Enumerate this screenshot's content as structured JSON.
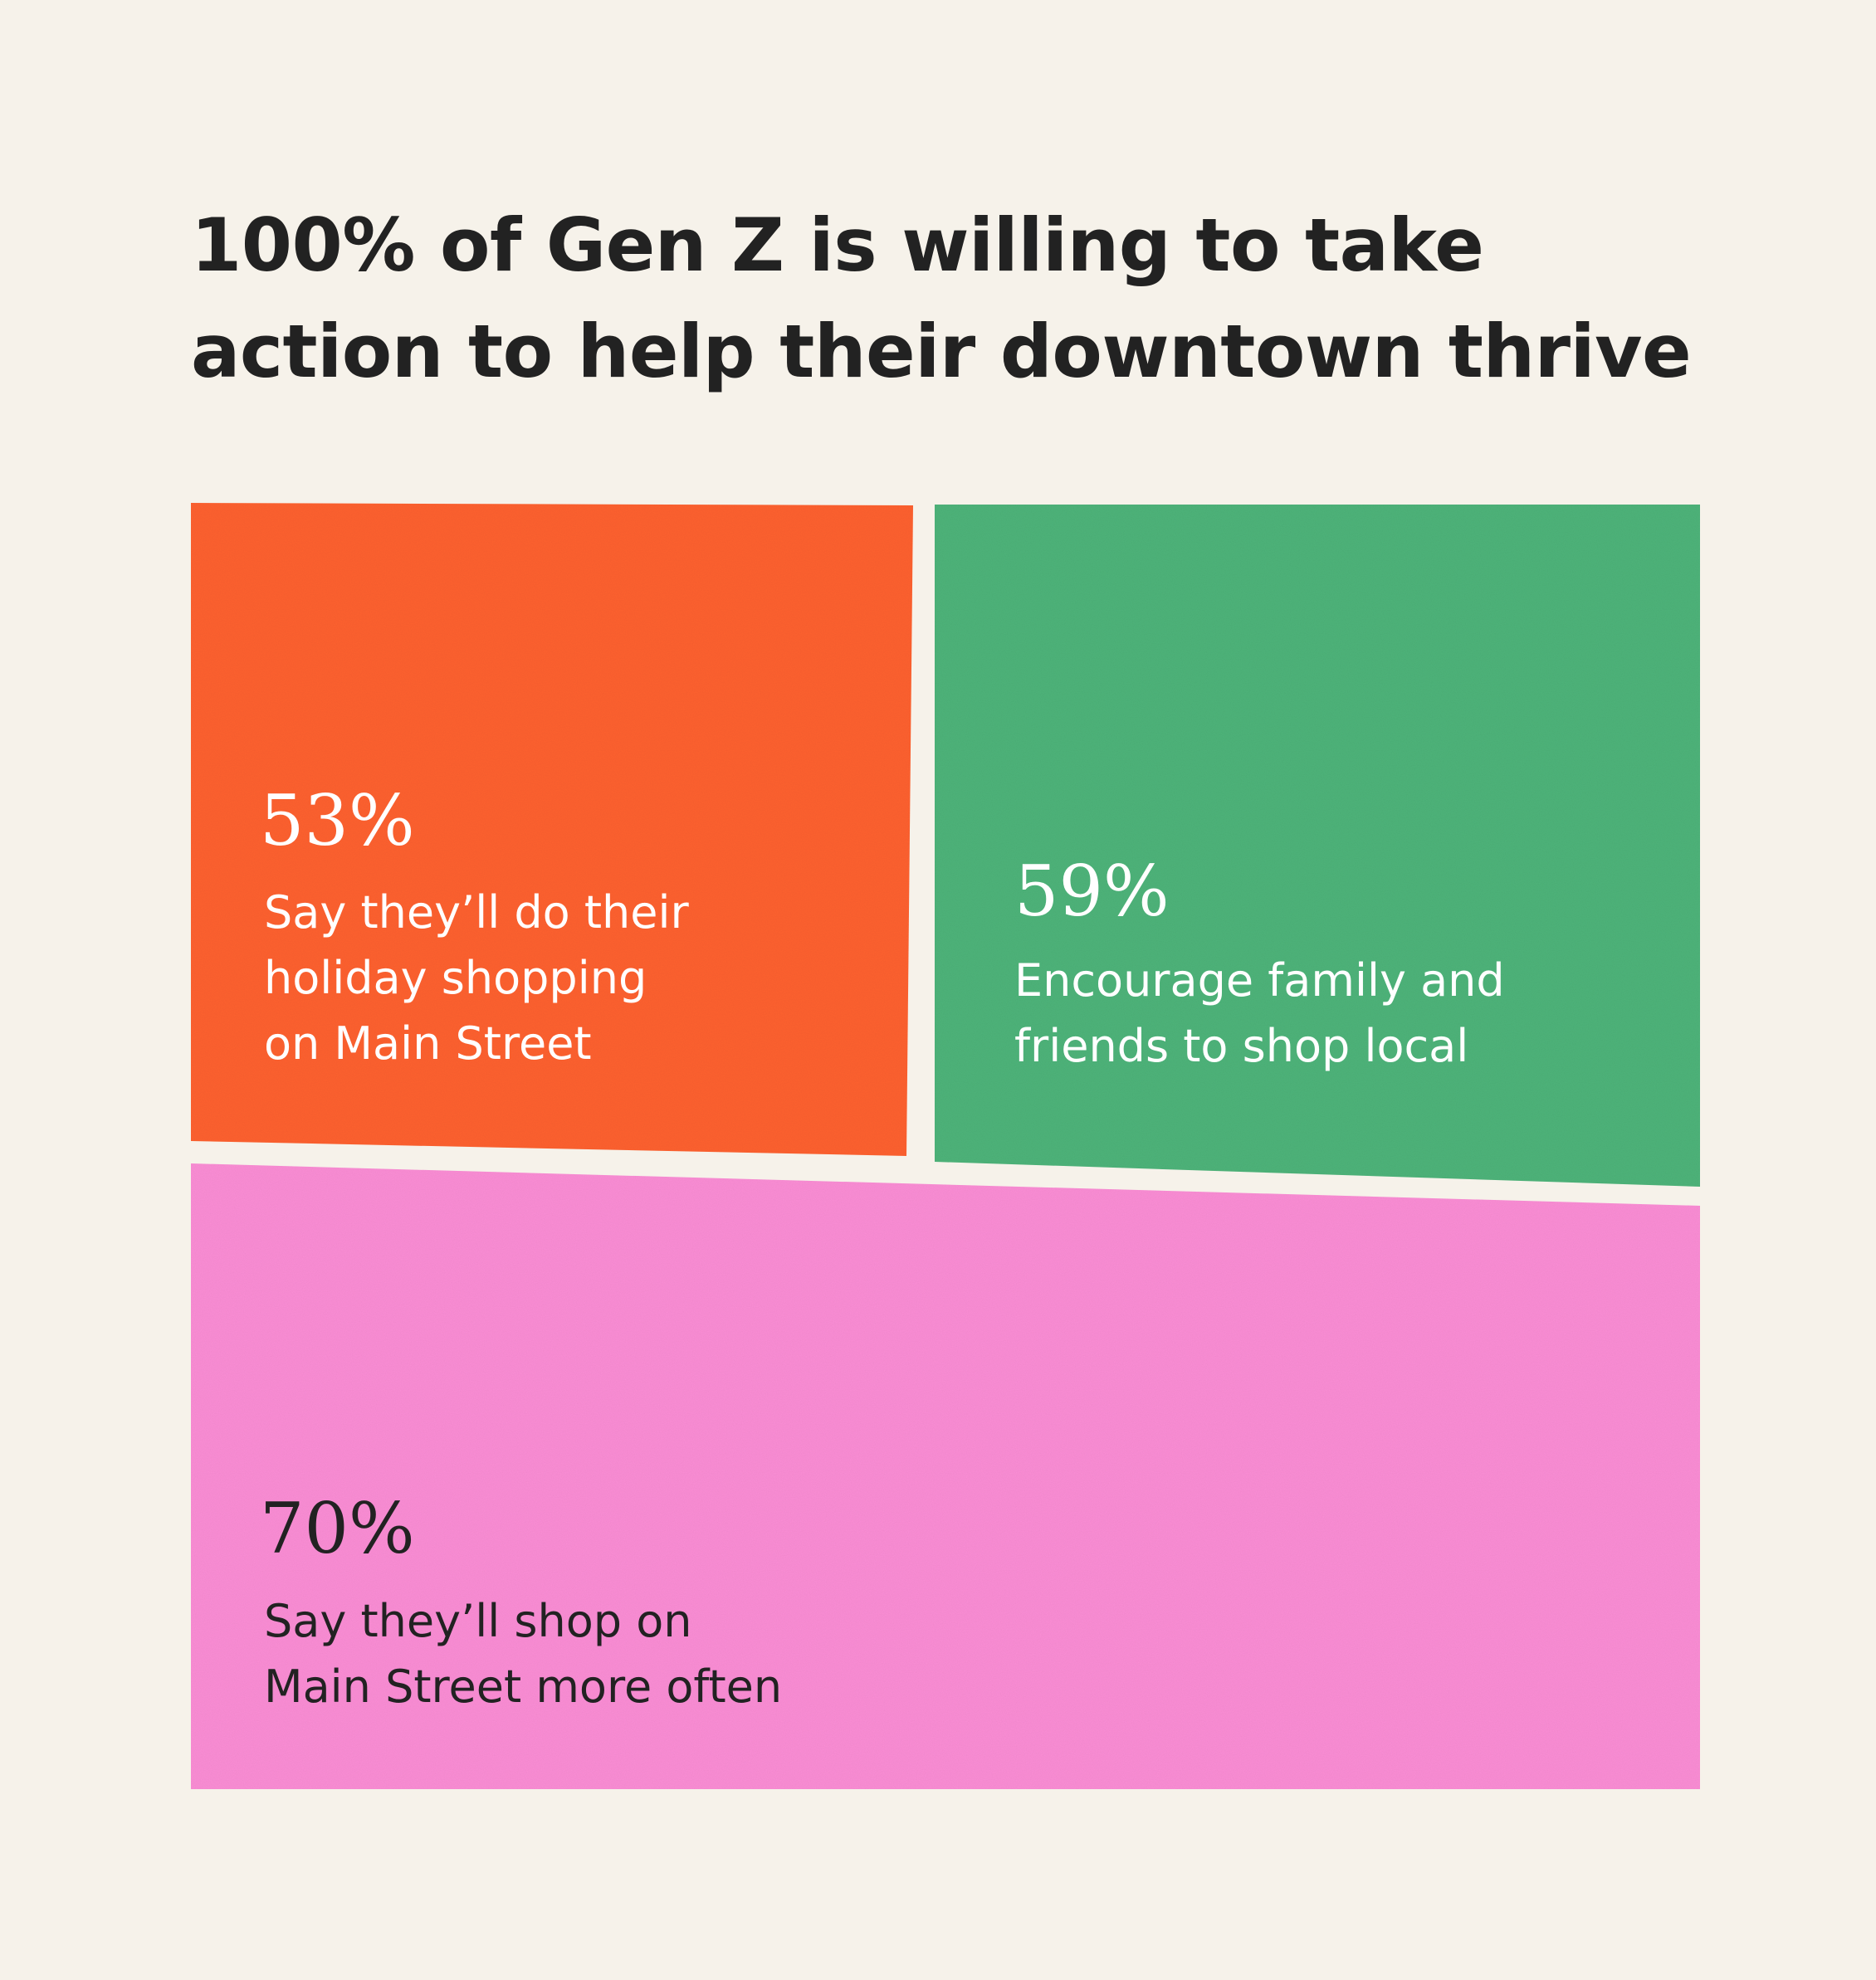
{
  "title": {
    "line1": "100% of Gen Z is willing to take",
    "line2": "action to help their downtown thrive"
  },
  "colors": {
    "background": "#f6f2ea",
    "title": "#222222"
  },
  "chart_data": {
    "type": "treemap",
    "title": "100% of Gen Z is willing to take action to help their downtown thrive",
    "items": [
      {
        "value": 53,
        "label": "53%",
        "description": [
          "Say they’ll do their",
          "holiday shopping",
          "on Main Street"
        ],
        "color": "#fe6233",
        "text_color": "#ffffff"
      },
      {
        "value": 59,
        "label": "59%",
        "description": [
          "Encourage family and",
          "friends to shop local"
        ],
        "color": "#4fb47a",
        "text_color": "#ffffff"
      },
      {
        "value": 70,
        "label": "70%",
        "description": [
          "Say they’ll shop on",
          "Main Street more often"
        ],
        "color": "#fb8ed5",
        "text_color": "#222222"
      }
    ]
  }
}
